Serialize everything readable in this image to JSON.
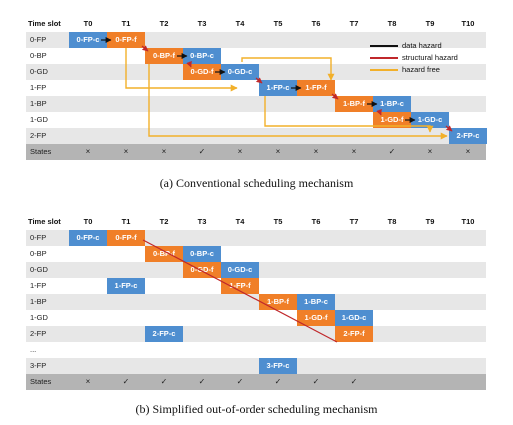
{
  "colors": {
    "compute": "#4e8ed0",
    "fetch": "#f07f28",
    "data_hazard": "#111111",
    "structural_hazard": "#c0282b",
    "hazard_free": "#f2b02a"
  },
  "diagram_a": {
    "header_label": "Time slot",
    "slots": [
      "T0",
      "T1",
      "T2",
      "T3",
      "T4",
      "T5",
      "T6",
      "T7",
      "T8",
      "T9",
      "T10"
    ],
    "rows": [
      "0-FP",
      "0-BP",
      "0-GD",
      "1-FP",
      "1-BP",
      "1-GD",
      "2-FP"
    ],
    "states_label": "States",
    "states": [
      "×",
      "×",
      "×",
      "✓",
      "×",
      "×",
      "×",
      "×",
      "✓",
      "×",
      "×"
    ],
    "boxes": [
      {
        "row": 0,
        "slot": 0,
        "text": "0-FP-c",
        "kind": "c"
      },
      {
        "row": 0,
        "slot": 1,
        "text": "0-FP-f",
        "kind": "f"
      },
      {
        "row": 1,
        "slot": 2,
        "text": "0-BP-f",
        "kind": "f"
      },
      {
        "row": 1,
        "slot": 3,
        "text": "0-BP-c",
        "kind": "c"
      },
      {
        "row": 2,
        "slot": 3,
        "text": "0-GD-f",
        "kind": "f"
      },
      {
        "row": 2,
        "slot": 4,
        "text": "0-GD-c",
        "kind": "c"
      },
      {
        "row": 3,
        "slot": 5,
        "text": "1-FP-c",
        "kind": "c"
      },
      {
        "row": 3,
        "slot": 6,
        "text": "1-FP-f",
        "kind": "f"
      },
      {
        "row": 4,
        "slot": 7,
        "text": "1-BP-f",
        "kind": "f"
      },
      {
        "row": 4,
        "slot": 8,
        "text": "1-BP-c",
        "kind": "c"
      },
      {
        "row": 5,
        "slot": 8,
        "text": "1-GD-f",
        "kind": "f"
      },
      {
        "row": 5,
        "slot": 9,
        "text": "1-GD-c",
        "kind": "c"
      },
      {
        "row": 6,
        "slot": 10,
        "text": "2-FP-c",
        "kind": "c"
      }
    ],
    "legend": [
      {
        "label": "data hazard",
        "color": "#111111"
      },
      {
        "label": "structural hazard",
        "color": "#c0282b"
      },
      {
        "label": "hazard free",
        "color": "#f2b02a"
      }
    ],
    "caption": "(a)  Conventional scheduling mechanism"
  },
  "diagram_b": {
    "header_label": "Time slot",
    "slots": [
      "T0",
      "T1",
      "T2",
      "T3",
      "T4",
      "T5",
      "T6",
      "T7",
      "T8",
      "T9",
      "T10"
    ],
    "rows": [
      "0-FP",
      "0-BP",
      "0-GD",
      "1-FP",
      "1-BP",
      "1-GD",
      "2-FP",
      "...",
      "3-FP"
    ],
    "states_label": "States",
    "states": [
      "×",
      "✓",
      "✓",
      "✓",
      "✓",
      "✓",
      "✓",
      "✓",
      "",
      "",
      ""
    ],
    "boxes": [
      {
        "row": 0,
        "slot": 0,
        "text": "0-FP-c",
        "kind": "c"
      },
      {
        "row": 0,
        "slot": 1,
        "text": "0-FP-f",
        "kind": "f"
      },
      {
        "row": 1,
        "slot": 2,
        "text": "0-BP-f",
        "kind": "f"
      },
      {
        "row": 1,
        "slot": 3,
        "text": "0-BP-c",
        "kind": "c"
      },
      {
        "row": 2,
        "slot": 3,
        "text": "0-GD-f",
        "kind": "f"
      },
      {
        "row": 2,
        "slot": 4,
        "text": "0-GD-c",
        "kind": "c"
      },
      {
        "row": 3,
        "slot": 1,
        "text": "1-FP-c",
        "kind": "c"
      },
      {
        "row": 3,
        "slot": 4,
        "text": "1-FP-f",
        "kind": "f"
      },
      {
        "row": 4,
        "slot": 5,
        "text": "1-BP-f",
        "kind": "f"
      },
      {
        "row": 4,
        "slot": 6,
        "text": "1-BP-c",
        "kind": "c"
      },
      {
        "row": 5,
        "slot": 6,
        "text": "1-GD-f",
        "kind": "f"
      },
      {
        "row": 5,
        "slot": 7,
        "text": "1-GD-c",
        "kind": "c"
      },
      {
        "row": 6,
        "slot": 2,
        "text": "2-FP-c",
        "kind": "c"
      },
      {
        "row": 6,
        "slot": 7,
        "text": "2-FP-f",
        "kind": "f"
      },
      {
        "row": 8,
        "slot": 5,
        "text": "3-FP-c",
        "kind": "c"
      }
    ],
    "caption": "(b)  Simplified out-of-order scheduling mechanism"
  }
}
